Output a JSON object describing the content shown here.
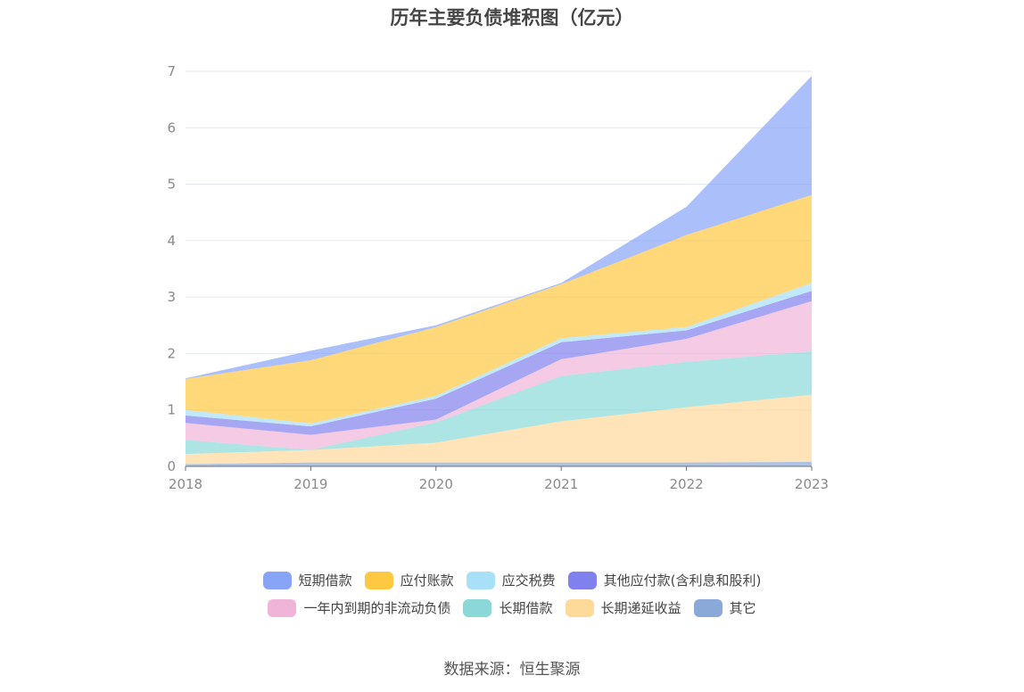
{
  "title": "历年主要负债堆积图（亿元）",
  "source": "数据来源：恒生聚源",
  "chart_data": {
    "type": "area",
    "stacked": true,
    "title": "历年主要负债堆积图（亿元）",
    "xlabel": "",
    "ylabel": "",
    "categories": [
      "2018",
      "2019",
      "2020",
      "2021",
      "2022",
      "2023"
    ],
    "ylim": [
      0,
      7
    ],
    "yticks": [
      "0",
      "1",
      "2",
      "3",
      "4",
      "5",
      "6",
      "7"
    ],
    "grid": true,
    "legend_position": "bottom",
    "series": [
      {
        "name": "其它",
        "color": "#8aa8d8",
        "values": [
          0.04,
          0.07,
          0.07,
          0.07,
          0.07,
          0.08
        ]
      },
      {
        "name": "长期递延收益",
        "color": "#fdd99a",
        "values": [
          0.18,
          0.22,
          0.35,
          0.73,
          0.98,
          1.19
        ]
      },
      {
        "name": "长期借款",
        "color": "#8ad8d8",
        "values": [
          0.25,
          0.0,
          0.36,
          0.8,
          0.8,
          0.77
        ]
      },
      {
        "name": "一年内到期的非流动负债",
        "color": "#f0b4d8",
        "values": [
          0.3,
          0.27,
          0.05,
          0.3,
          0.41,
          0.89
        ]
      },
      {
        "name": "其他应付款(含利息和股利)",
        "color": "#8080ee",
        "values": [
          0.13,
          0.15,
          0.37,
          0.3,
          0.15,
          0.18
        ]
      },
      {
        "name": "应交税费",
        "color": "#a8e0f8",
        "values": [
          0.1,
          0.05,
          0.05,
          0.07,
          0.06,
          0.14
        ]
      },
      {
        "name": "应付账款",
        "color": "#fec840",
        "values": [
          0.55,
          1.12,
          1.22,
          0.96,
          1.63,
          1.56
        ]
      },
      {
        "name": "短期借款",
        "color": "#88a4f8",
        "values": [
          0.01,
          0.17,
          0.03,
          0.02,
          0.5,
          2.11
        ]
      }
    ]
  },
  "legend": {
    "rows": [
      [
        "短期借款",
        "应付账款",
        "应交税费",
        "其他应付款(含利息和股利)"
      ],
      [
        "一年内到期的非流动负债",
        "长期借款",
        "长期递延收益",
        "其它"
      ]
    ]
  }
}
